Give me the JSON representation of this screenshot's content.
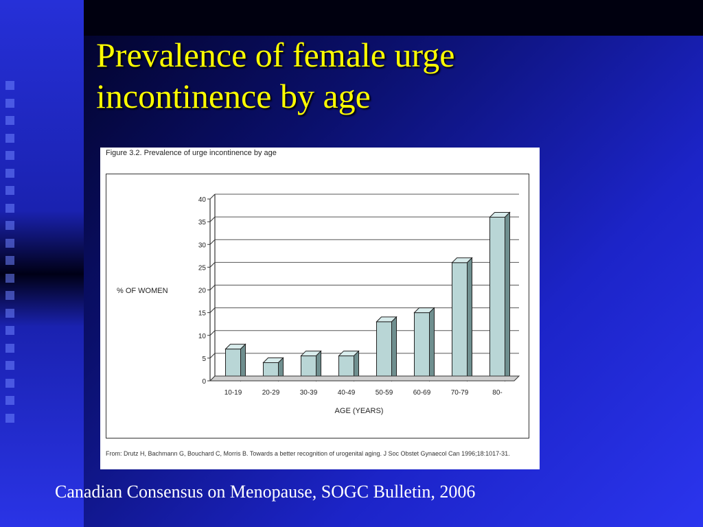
{
  "slide": {
    "title": "Prevalence of female urge incontinence by age",
    "footer": "Canadian Consensus on Menopause, SOGC Bulletin, 2006"
  },
  "figure": {
    "caption": "Figure 3.2.  Prevalence of urge incontinence by age",
    "source": "From: Drutz H, Bachmann G, Bouchard C, Morris B. Towards a better recognition of urogenital aging. J Soc Obstet Gynaecol Can 1996;18:1017-31."
  },
  "chart_data": {
    "type": "bar",
    "categories": [
      "10-19",
      "20-29",
      "30-39",
      "40-49",
      "50-59",
      "60-69",
      "70-79",
      "80-"
    ],
    "values": [
      7,
      4,
      5.5,
      5.5,
      13,
      15,
      26,
      36
    ],
    "xlabel": "AGE (YEARS)",
    "ylabel": "% OF WOMEN",
    "ylim": [
      0,
      40
    ],
    "yticks": [
      0,
      5,
      10,
      15,
      20,
      25,
      30,
      35,
      40
    ],
    "grid": true,
    "bar_color": "#b9d6d6"
  }
}
